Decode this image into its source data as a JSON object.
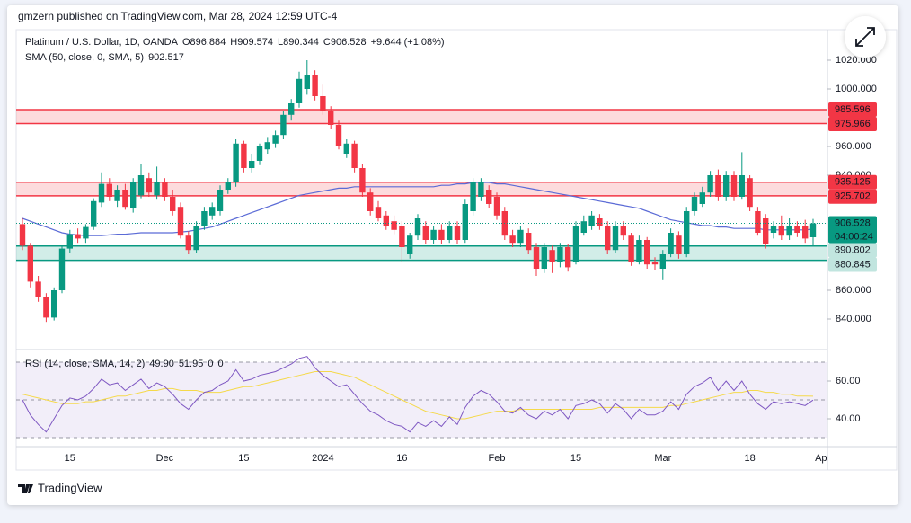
{
  "published": "gmzern published on TradingView.com, Mar 28, 2024 12:59 UTC-4",
  "brand": "TradingView",
  "chart_data": [
    {
      "type": "candlestick",
      "title": "Platinum / U.S. Dollar, 1D, OANDA",
      "legend_values": [
        "O896.884",
        "H909.574",
        "L890.344",
        "C906.528",
        "+9.644 (+1.08%)"
      ],
      "countdown": "04:00:24",
      "up_color": "#089981",
      "down_color": "#f23645",
      "categories": [
        null,
        null,
        null,
        null,
        null,
        null,
        "15",
        null,
        null,
        null,
        null,
        null,
        null,
        null,
        null,
        null,
        null,
        null,
        "Dec",
        null,
        null,
        null,
        null,
        null,
        null,
        null,
        null,
        null,
        "15",
        null,
        null,
        null,
        null,
        null,
        null,
        null,
        null,
        null,
        "2024",
        null,
        null,
        null,
        null,
        null,
        null,
        null,
        null,
        null,
        "16",
        null,
        null,
        null,
        null,
        null,
        null,
        null,
        null,
        null,
        null,
        null,
        "Feb",
        null,
        null,
        null,
        null,
        null,
        null,
        null,
        null,
        null,
        "15",
        null,
        null,
        null,
        null,
        null,
        null,
        null,
        null,
        null,
        null,
        "Mar",
        null,
        null,
        null,
        null,
        null,
        null,
        null,
        null,
        null,
        null,
        "18",
        null,
        null,
        null,
        null,
        null,
        null,
        null,
        null,
        "Ap"
      ],
      "open": [
        906,
        891,
        866,
        855,
        841,
        860,
        889,
        899,
        896,
        904,
        921,
        934,
        922,
        930,
        917,
        926,
        938,
        926,
        935,
        925,
        918,
        898,
        888,
        905,
        912,
        915,
        930,
        935,
        962,
        945,
        950,
        958,
        962,
        968,
        982,
        990,
        1000,
        1010,
        995,
        985,
        975,
        955,
        962,
        945,
        928,
        918,
        912,
        908,
        905,
        885,
        898,
        905,
        895,
        902,
        895,
        905,
        895,
        915,
        925,
        930,
        925,
        915,
        898,
        893,
        900,
        890,
        875,
        888,
        880,
        890,
        880,
        900,
        905,
        910,
        905,
        888,
        905,
        898,
        880,
        895,
        880,
        875,
        885,
        898,
        885,
        915,
        920,
        928,
        940,
        925,
        940,
        925,
        938,
        915,
        910,
        900,
        905,
        898,
        905,
        905,
        896.884,
        null
      ],
      "high": [
        910,
        893,
        870,
        858,
        862,
        891,
        902,
        903,
        906,
        924,
        942,
        938,
        933,
        934,
        938,
        948,
        942,
        946,
        938,
        930,
        921,
        901,
        908,
        918,
        921,
        933,
        938,
        965,
        964,
        955,
        962,
        966,
        971,
        985,
        993,
        1012,
        1020,
        1013,
        1003,
        988,
        978,
        965,
        964,
        948,
        931,
        922,
        915,
        912,
        908,
        900,
        913,
        908,
        905,
        906,
        908,
        908,
        923,
        938,
        938,
        933,
        928,
        918,
        902,
        905,
        903,
        893,
        893,
        891,
        893,
        892,
        908,
        912,
        915,
        913,
        908,
        908,
        908,
        900,
        898,
        897,
        883,
        888,
        903,
        901,
        918,
        928,
        932,
        943,
        944,
        943,
        943,
        956,
        940,
        918,
        913,
        908,
        912,
        910,
        908,
        909,
        909.574,
        null
      ],
      "low": [
        888,
        862,
        852,
        838,
        839,
        858,
        886,
        893,
        893,
        902,
        918,
        922,
        918,
        916,
        914,
        924,
        925,
        923,
        922,
        912,
        896,
        885,
        886,
        902,
        909,
        912,
        927,
        932,
        942,
        942,
        947,
        955,
        959,
        965,
        978,
        987,
        996,
        992,
        982,
        972,
        958,
        952,
        942,
        925,
        912,
        908,
        902,
        899,
        880,
        882,
        895,
        892,
        892,
        892,
        893,
        892,
        893,
        912,
        922,
        917,
        909,
        895,
        890,
        890,
        885,
        870,
        872,
        872,
        876,
        873,
        878,
        898,
        902,
        902,
        885,
        886,
        895,
        877,
        878,
        875,
        874,
        867,
        883,
        882,
        883,
        912,
        918,
        925,
        922,
        922,
        922,
        923,
        915,
        898,
        889,
        896,
        895,
        895,
        897,
        893,
        890.344,
        null
      ],
      "close": [
        891,
        866,
        855,
        841,
        860,
        889,
        899,
        896,
        904,
        922,
        934,
        925,
        930,
        918,
        935,
        940,
        928,
        935,
        925,
        915,
        898,
        888,
        905,
        915,
        918,
        930,
        935,
        962,
        945,
        950,
        960,
        963,
        968,
        982,
        990,
        1007,
        1010,
        995,
        985,
        975,
        960,
        962,
        945,
        928,
        915,
        910,
        905,
        902,
        890,
        898,
        910,
        895,
        902,
        895,
        905,
        895,
        920,
        935,
        935,
        920,
        912,
        898,
        893,
        902,
        888,
        875,
        890,
        880,
        890,
        876,
        905,
        908,
        912,
        905,
        888,
        905,
        898,
        880,
        895,
        878,
        878,
        885,
        900,
        885,
        915,
        925,
        928,
        940,
        925,
        940,
        925,
        940,
        918,
        900,
        892,
        905,
        898,
        905,
        900,
        896,
        906.528,
        null
      ],
      "series": [
        {
          "name": "SMA (50, close, 0, SMA, 5)",
          "color": "#5b6bd6",
          "values": [
            910,
            908,
            906,
            904,
            902,
            900,
            899,
            898.5,
            898,
            898,
            898,
            898.5,
            899,
            899,
            899.5,
            900,
            900,
            900,
            900,
            900,
            900.5,
            901,
            902,
            903,
            904,
            906,
            908,
            910,
            912,
            914,
            916,
            918,
            920,
            922,
            924,
            926,
            927,
            928,
            929,
            930,
            931,
            931,
            932,
            932,
            932,
            932,
            932,
            932,
            932,
            932,
            932,
            932,
            932,
            933,
            933,
            934,
            934,
            935,
            935,
            935,
            934,
            934,
            933,
            932,
            931,
            930,
            929,
            928,
            927,
            926,
            925,
            924,
            923,
            922,
            921,
            920,
            919,
            918,
            917,
            915,
            913,
            911,
            909,
            908,
            907,
            906,
            905,
            905,
            904,
            904,
            903,
            903,
            903,
            903,
            902,
            902,
            902,
            902,
            902,
            902,
            902.517,
            null
          ]
        }
      ],
      "zones": [
        {
          "top": 985.596,
          "bottom": 975.966,
          "color": "#f23645"
        },
        {
          "top": 935.125,
          "bottom": 925.702,
          "color": "#f23645"
        },
        {
          "top": 890.802,
          "bottom": 880.845,
          "color": "#089981"
        }
      ],
      "ylim": [
        820,
        1040
      ],
      "yticks": [
        {
          "value": 1020,
          "label": "1020.000"
        },
        {
          "value": 1000,
          "label": "1000.000"
        },
        {
          "value": 960,
          "label": "960.000"
        },
        {
          "value": 940,
          "label": "940.000"
        },
        {
          "value": 860,
          "label": "860.000"
        },
        {
          "value": 840,
          "label": "840.000"
        }
      ],
      "grid": false
    },
    {
      "type": "line",
      "title": "RSI (14, close, SMA, 14, 2)",
      "legend_values": [
        "49.90",
        "51.95",
        "0",
        "0"
      ],
      "series": [
        {
          "color": "#7e57c2",
          "values": [
            50,
            42,
            37,
            33,
            40,
            47,
            51,
            50,
            52,
            56,
            61,
            58,
            59,
            55,
            58,
            61,
            56,
            59,
            57,
            53,
            48,
            45,
            50,
            54,
            55,
            58,
            60,
            66,
            60,
            61,
            63,
            64,
            65,
            67,
            69,
            72,
            73,
            67,
            63,
            60,
            57,
            58,
            53,
            48,
            44,
            42,
            39,
            37,
            36,
            33,
            38,
            36,
            39,
            36,
            41,
            37,
            46,
            52,
            55,
            53,
            49,
            44,
            43,
            46,
            42,
            40,
            44,
            42,
            45,
            40,
            47,
            48,
            50,
            48,
            43,
            48,
            45,
            40,
            45,
            42,
            42,
            44,
            49,
            45,
            53,
            57,
            59,
            62,
            55,
            60,
            55,
            60,
            53,
            48,
            45,
            49,
            48,
            49,
            48,
            47,
            49.9,
            null
          ]
        },
        {
          "color": "#f5d94a",
          "values": [
            53,
            52,
            51,
            50,
            49,
            48,
            48,
            48,
            49,
            49,
            50,
            51,
            52,
            52,
            53,
            54,
            55,
            55,
            56,
            56,
            55,
            55,
            55,
            54,
            54,
            54,
            55,
            56,
            57,
            57,
            58,
            59,
            60,
            61,
            62,
            63,
            64,
            65,
            65,
            65,
            64,
            63,
            62,
            60,
            58,
            56,
            54,
            52,
            50,
            48,
            46,
            44,
            43,
            42,
            41,
            40,
            40,
            41,
            42,
            43,
            44,
            44,
            44,
            45,
            45,
            45,
            45,
            45,
            45,
            45,
            45,
            45,
            45,
            46,
            46,
            46,
            46,
            46,
            46,
            46,
            46,
            46,
            47,
            47,
            48,
            49,
            50,
            51,
            52,
            53,
            54,
            54,
            55,
            55,
            54,
            54,
            53,
            53,
            52,
            52,
            51.95,
            null
          ]
        }
      ],
      "band": [
        30,
        70
      ],
      "hlines": [
        70,
        50,
        30
      ],
      "ylim": [
        25,
        76
      ],
      "yticks": [
        {
          "value": 60,
          "label": "60.00"
        },
        {
          "value": 40,
          "label": "40.00"
        }
      ]
    }
  ]
}
